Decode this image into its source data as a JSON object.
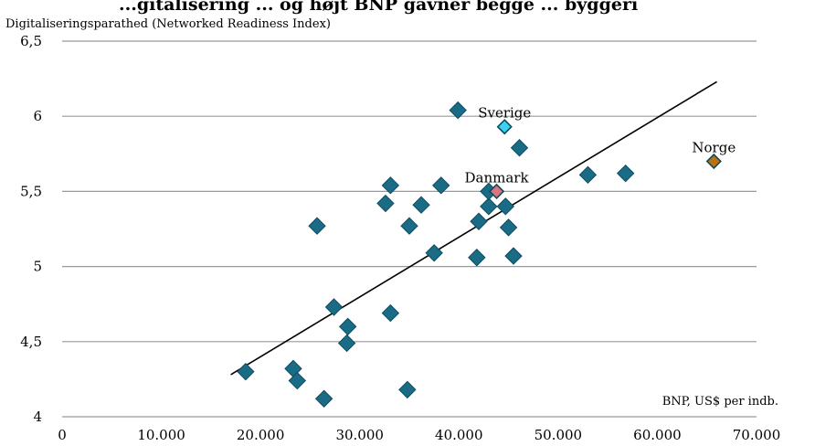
{
  "chart_data": {
    "type": "scatter",
    "title": "...gitalisering ... og højt BNP gavner begge ... byggeri",
    "ylabel": "Digitaliseringsparathed (Networked Readiness Index)",
    "xlabel": "BNP, US$ per indb.",
    "xlim": [
      0,
      70000
    ],
    "ylim": [
      4,
      6.5
    ],
    "x_ticks": [
      "0",
      "10.000",
      "20.000",
      "30.000",
      "40.000",
      "50.000",
      "60.000",
      "70.000"
    ],
    "y_ticks": [
      "4",
      "4,5",
      "5",
      "5,5",
      "6",
      "6,5"
    ],
    "grid": "horizontal",
    "trendline": {
      "x": [
        17000,
        66000
      ],
      "y": [
        4.28,
        6.23
      ]
    },
    "points": [
      {
        "x": 18500,
        "y": 4.3
      },
      {
        "x": 23300,
        "y": 4.32
      },
      {
        "x": 23700,
        "y": 4.24
      },
      {
        "x": 26400,
        "y": 4.12
      },
      {
        "x": 25700,
        "y": 5.27
      },
      {
        "x": 27400,
        "y": 4.73
      },
      {
        "x": 28800,
        "y": 4.6
      },
      {
        "x": 28700,
        "y": 4.49
      },
      {
        "x": 32600,
        "y": 5.42
      },
      {
        "x": 33100,
        "y": 5.54
      },
      {
        "x": 33100,
        "y": 4.69
      },
      {
        "x": 34800,
        "y": 4.18
      },
      {
        "x": 35000,
        "y": 5.27
      },
      {
        "x": 36200,
        "y": 5.41
      },
      {
        "x": 37500,
        "y": 5.09
      },
      {
        "x": 38200,
        "y": 5.54
      },
      {
        "x": 39900,
        "y": 6.04
      },
      {
        "x": 41800,
        "y": 5.06
      },
      {
        "x": 42000,
        "y": 5.3
      },
      {
        "x": 43000,
        "y": 5.4
      },
      {
        "x": 43000,
        "y": 5.5
      },
      {
        "x": 44700,
        "y": 5.4
      },
      {
        "x": 45000,
        "y": 5.26
      },
      {
        "x": 45500,
        "y": 5.07
      },
      {
        "x": 46100,
        "y": 5.79
      },
      {
        "x": 53000,
        "y": 5.61
      },
      {
        "x": 56800,
        "y": 5.62
      }
    ],
    "highlighted": [
      {
        "name": "Sverige",
        "x": 44600,
        "y": 5.93,
        "color": "#3dd0f0"
      },
      {
        "name": "Danmark",
        "x": 43800,
        "y": 5.5,
        "color": "#d9757e"
      },
      {
        "name": "Norge",
        "x": 65700,
        "y": 5.7,
        "color": "#c0700c"
      }
    ],
    "colors": {
      "marker": "#1a6c86",
      "marker_stroke": "#0e4b5e",
      "grid": "#9a9a9a",
      "trendline": "#000000"
    }
  }
}
